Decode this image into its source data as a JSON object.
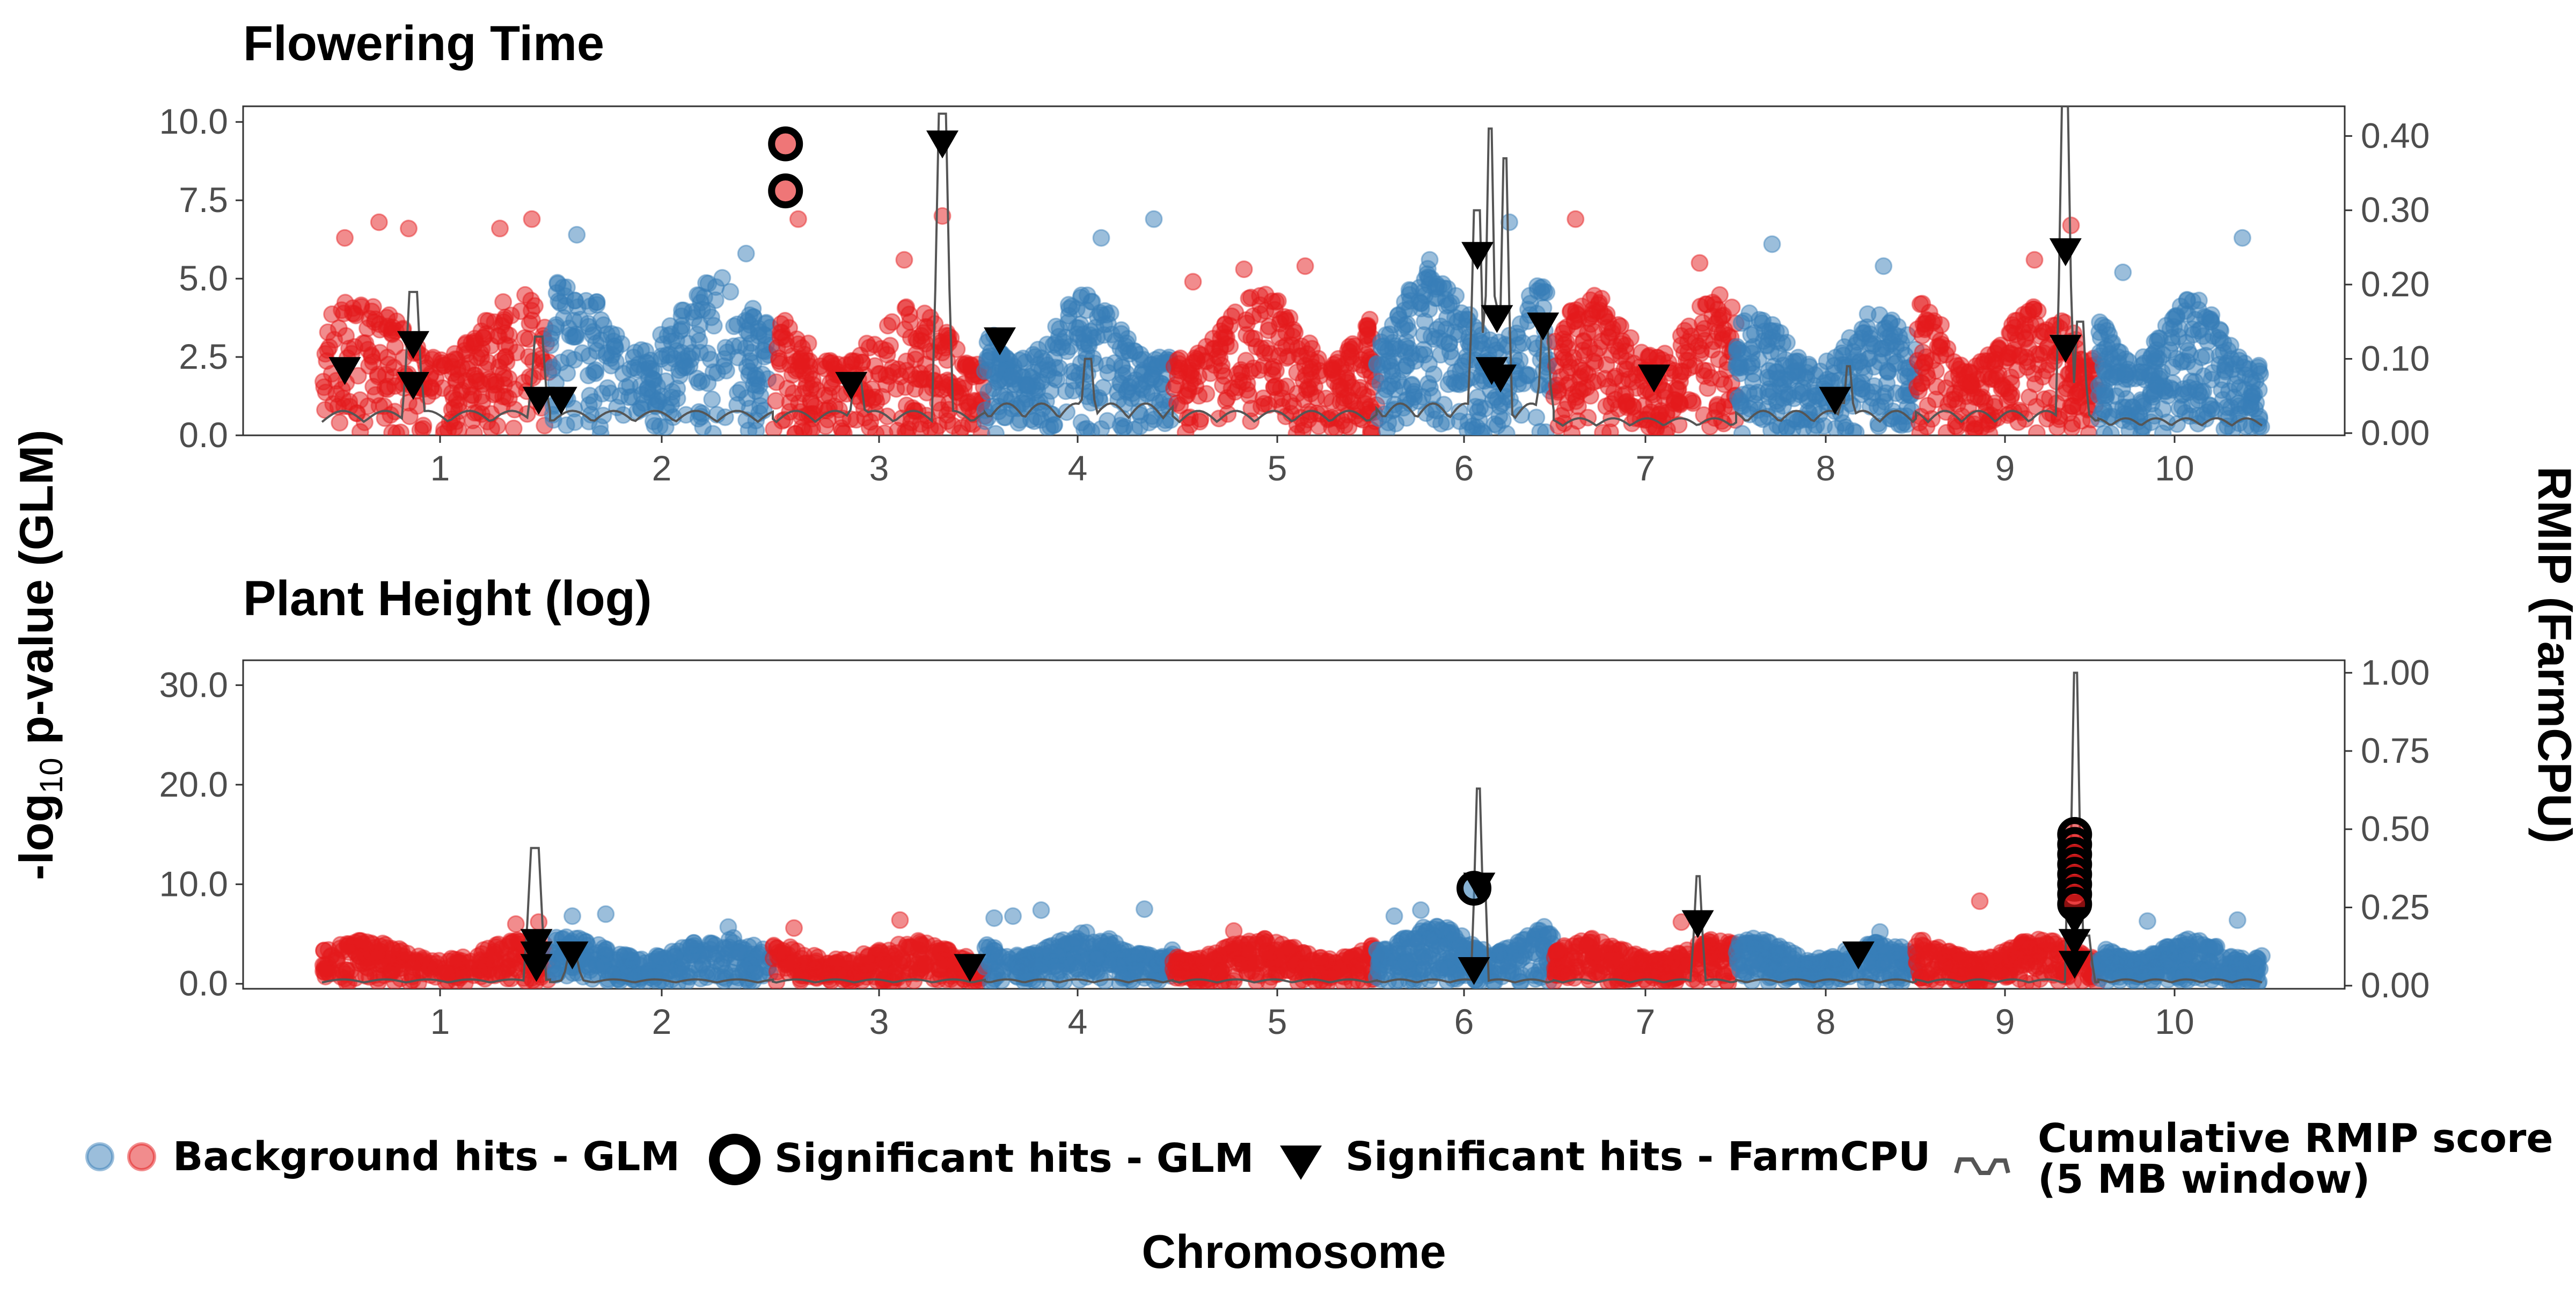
{
  "chart_data": {
    "type": "scatter",
    "subtype": "manhattan",
    "chromosomes": [
      "1",
      "2",
      "3",
      "4",
      "5",
      "6",
      "7",
      "8",
      "9",
      "10"
    ],
    "x_axis_label": "Chromosome",
    "y_axis_left_label_main": "-log",
    "y_axis_left_label_sub": "10",
    "y_axis_left_label_tail": " p-value (GLM)",
    "y_axis_right_label": "RMIP (FarmCPU)",
    "colors": {
      "odd_chromosome": "#e41a1c",
      "even_chromosome": "#377eb8",
      "significant_glm": "#000000",
      "farmcpu": "#000000",
      "rmip_line": "#555555"
    },
    "grid": false,
    "legend_position": "bottom",
    "legend": [
      {
        "key": "background",
        "label": "Background hits - GLM"
      },
      {
        "key": "sig_glm",
        "label": "Significant hits - GLM"
      },
      {
        "key": "sig_farmcpu",
        "label": "Significant hits - FarmCPU"
      },
      {
        "key": "rmip",
        "label_line1": "Cumulative RMIP score",
        "label_line2": "(5 MB window)"
      }
    ],
    "panels": [
      {
        "title": "Flowering Time",
        "y_left_ticks": [
          "0.0",
          "2.5",
          "5.0",
          "7.5",
          "10.0"
        ],
        "y_left_range": [
          0,
          10.5
        ],
        "y_right_ticks": [
          "0.00",
          "0.10",
          "0.20",
          "0.30",
          "0.40"
        ],
        "y_right_range": [
          -0.003,
          0.44
        ],
        "background_peak": [
          4.5,
          5.2,
          4.2,
          4.5,
          4.6,
          5.4,
          4.5,
          4.0,
          4.3,
          4.4
        ],
        "background_outliers": [
          {
            "chr": 1,
            "pos": 0.1,
            "y": 6.3
          },
          {
            "chr": 1,
            "pos": 0.25,
            "y": 6.8
          },
          {
            "chr": 1,
            "pos": 0.38,
            "y": 6.6
          },
          {
            "chr": 1,
            "pos": 0.78,
            "y": 6.6
          },
          {
            "chr": 1,
            "pos": 0.92,
            "y": 6.9
          },
          {
            "chr": 2,
            "pos": 0.12,
            "y": 6.4
          },
          {
            "chr": 2,
            "pos": 0.88,
            "y": 5.8
          },
          {
            "chr": 3,
            "pos": 0.12,
            "y": 6.9
          },
          {
            "chr": 3,
            "pos": 0.62,
            "y": 5.6
          },
          {
            "chr": 3,
            "pos": 0.8,
            "y": 7.0
          },
          {
            "chr": 4,
            "pos": 0.62,
            "y": 6.3
          },
          {
            "chr": 4,
            "pos": 0.9,
            "y": 6.9
          },
          {
            "chr": 5,
            "pos": 0.1,
            "y": 4.9
          },
          {
            "chr": 5,
            "pos": 0.35,
            "y": 5.3
          },
          {
            "chr": 5,
            "pos": 0.65,
            "y": 5.4
          },
          {
            "chr": 6,
            "pos": 0.75,
            "y": 6.8
          },
          {
            "chr": 6,
            "pos": 0.3,
            "y": 5.6
          },
          {
            "chr": 7,
            "pos": 0.12,
            "y": 6.9
          },
          {
            "chr": 7,
            "pos": 0.8,
            "y": 5.5
          },
          {
            "chr": 8,
            "pos": 0.2,
            "y": 6.1
          },
          {
            "chr": 8,
            "pos": 0.82,
            "y": 5.4
          },
          {
            "chr": 9,
            "pos": 0.65,
            "y": 5.6
          },
          {
            "chr": 9,
            "pos": 0.85,
            "y": 6.7
          },
          {
            "chr": 10,
            "pos": 0.15,
            "y": 5.2
          },
          {
            "chr": 10,
            "pos": 0.88,
            "y": 6.3
          }
        ],
        "sig_glm": [
          {
            "chr": 3,
            "pos": 0.06,
            "y": 9.3
          },
          {
            "chr": 3,
            "pos": 0.06,
            "y": 7.8
          }
        ],
        "farmcpu": [
          {
            "chr": 1,
            "pos": 0.1,
            "r": 0.085
          },
          {
            "chr": 1,
            "pos": 0.4,
            "r": 0.12
          },
          {
            "chr": 1,
            "pos": 0.4,
            "r": 0.065
          },
          {
            "chr": 1,
            "pos": 0.95,
            "r": 0.045
          },
          {
            "chr": 2,
            "pos": 0.05,
            "r": 0.045
          },
          {
            "chr": 3,
            "pos": 0.37,
            "r": 0.065
          },
          {
            "chr": 3,
            "pos": 0.8,
            "r": 0.39
          },
          {
            "chr": 4,
            "pos": 0.08,
            "r": 0.125
          },
          {
            "chr": 6,
            "pos": 0.57,
            "r": 0.24
          },
          {
            "chr": 6,
            "pos": 0.68,
            "r": 0.155
          },
          {
            "chr": 6,
            "pos": 0.65,
            "r": 0.085
          },
          {
            "chr": 6,
            "pos": 0.7,
            "r": 0.075
          },
          {
            "chr": 6,
            "pos": 0.94,
            "r": 0.145
          },
          {
            "chr": 7,
            "pos": 0.55,
            "r": 0.075
          },
          {
            "chr": 8,
            "pos": 0.55,
            "r": 0.045
          },
          {
            "chr": 9,
            "pos": 0.82,
            "r": 0.245
          },
          {
            "chr": 9,
            "pos": 0.82,
            "r": 0.115
          }
        ],
        "rmip_base": [
          0.03,
          0.03,
          0.03,
          0.04,
          0.03,
          0.04,
          0.02,
          0.03,
          0.03,
          0.02
        ],
        "rmip_peaks": [
          {
            "chr": 1,
            "pos": 0.4,
            "h": 0.19
          },
          {
            "chr": 1,
            "pos": 0.95,
            "h": 0.13
          },
          {
            "chr": 3,
            "pos": 0.8,
            "h": 0.43
          },
          {
            "chr": 3,
            "pos": 0.4,
            "h": 0.07
          },
          {
            "chr": 4,
            "pos": 0.55,
            "h": 0.1
          },
          {
            "chr": 6,
            "pos": 0.57,
            "h": 0.3
          },
          {
            "chr": 6,
            "pos": 0.64,
            "h": 0.41
          },
          {
            "chr": 6,
            "pos": 0.72,
            "h": 0.37
          },
          {
            "chr": 6,
            "pos": 0.95,
            "h": 0.14
          },
          {
            "chr": 8,
            "pos": 0.62,
            "h": 0.09
          },
          {
            "chr": 9,
            "pos": 0.82,
            "h": 0.44
          },
          {
            "chr": 9,
            "pos": 0.9,
            "h": 0.15
          }
        ]
      },
      {
        "title": "Plant Height (log)",
        "y_left_ticks": [
          "0.0",
          "10.0",
          "20.0",
          "30.0"
        ],
        "y_left_range": [
          -0.5,
          32.5
        ],
        "y_right_ticks": [
          "0.00",
          "0.25",
          "0.50",
          "0.75",
          "1.00"
        ],
        "y_right_range": [
          -0.01,
          1.04
        ],
        "background_peak": [
          4.4,
          4.8,
          4.4,
          5.2,
          4.6,
          6.0,
          4.6,
          4.6,
          4.6,
          4.6
        ],
        "background_outliers": [
          {
            "chr": 1,
            "pos": 0.85,
            "y": 6.0
          },
          {
            "chr": 1,
            "pos": 0.95,
            "y": 6.2
          },
          {
            "chr": 2,
            "pos": 0.1,
            "y": 6.8
          },
          {
            "chr": 2,
            "pos": 0.25,
            "y": 7.0
          },
          {
            "chr": 2,
            "pos": 0.8,
            "y": 5.7
          },
          {
            "chr": 3,
            "pos": 0.1,
            "y": 5.6
          },
          {
            "chr": 3,
            "pos": 0.6,
            "y": 6.4
          },
          {
            "chr": 4,
            "pos": 0.05,
            "y": 6.6
          },
          {
            "chr": 4,
            "pos": 0.15,
            "y": 6.8
          },
          {
            "chr": 4,
            "pos": 0.3,
            "y": 7.4
          },
          {
            "chr": 4,
            "pos": 0.85,
            "y": 7.5
          },
          {
            "chr": 5,
            "pos": 0.3,
            "y": 5.3
          },
          {
            "chr": 6,
            "pos": 0.1,
            "y": 6.8
          },
          {
            "chr": 6,
            "pos": 0.25,
            "y": 7.4
          },
          {
            "chr": 7,
            "pos": 0.7,
            "y": 6.2
          },
          {
            "chr": 8,
            "pos": 0.8,
            "y": 5.2
          },
          {
            "chr": 9,
            "pos": 0.35,
            "y": 8.3
          },
          {
            "chr": 10,
            "pos": 0.3,
            "y": 6.3
          },
          {
            "chr": 10,
            "pos": 0.85,
            "y": 6.4
          }
        ],
        "sig_glm": [
          {
            "chr": 6,
            "pos": 0.55,
            "y": 9.6
          },
          {
            "chr": 9,
            "pos": 0.87,
            "y": 15.0
          },
          {
            "chr": 9,
            "pos": 0.87,
            "y": 14.0
          },
          {
            "chr": 9,
            "pos": 0.87,
            "y": 13.0
          },
          {
            "chr": 9,
            "pos": 0.87,
            "y": 12.0
          },
          {
            "chr": 9,
            "pos": 0.87,
            "y": 11.0
          },
          {
            "chr": 9,
            "pos": 0.87,
            "y": 10.0
          },
          {
            "chr": 9,
            "pos": 0.87,
            "y": 9.0
          },
          {
            "chr": 9,
            "pos": 0.87,
            "y": 8.0
          }
        ],
        "farmcpu": [
          {
            "chr": 1,
            "pos": 0.94,
            "r": 0.14
          },
          {
            "chr": 1,
            "pos": 0.94,
            "r": 0.1
          },
          {
            "chr": 1,
            "pos": 0.94,
            "r": 0.06
          },
          {
            "chr": 2,
            "pos": 0.1,
            "r": 0.1
          },
          {
            "chr": 3,
            "pos": 0.93,
            "r": 0.06
          },
          {
            "chr": 6,
            "pos": 0.58,
            "r": 0.32
          },
          {
            "chr": 6,
            "pos": 0.55,
            "r": 0.05
          },
          {
            "chr": 7,
            "pos": 0.79,
            "r": 0.2
          },
          {
            "chr": 8,
            "pos": 0.68,
            "r": 0.1
          },
          {
            "chr": 9,
            "pos": 0.87,
            "r": 0.21
          },
          {
            "chr": 9,
            "pos": 0.87,
            "r": 0.14
          },
          {
            "chr": 9,
            "pos": 0.87,
            "r": 0.07
          }
        ],
        "rmip_base": [
          0.02,
          0.02,
          0.02,
          0.02,
          0.02,
          0.02,
          0.02,
          0.02,
          0.02,
          0.02
        ],
        "rmip_peaks": [
          {
            "chr": 1,
            "pos": 0.93,
            "h": 0.44
          },
          {
            "chr": 2,
            "pos": 0.1,
            "h": 0.1
          },
          {
            "chr": 6,
            "pos": 0.58,
            "h": 0.63
          },
          {
            "chr": 7,
            "pos": 0.79,
            "h": 0.35
          },
          {
            "chr": 9,
            "pos": 0.87,
            "h": 1.0
          },
          {
            "chr": 9,
            "pos": 0.93,
            "h": 0.16
          }
        ]
      }
    ]
  }
}
